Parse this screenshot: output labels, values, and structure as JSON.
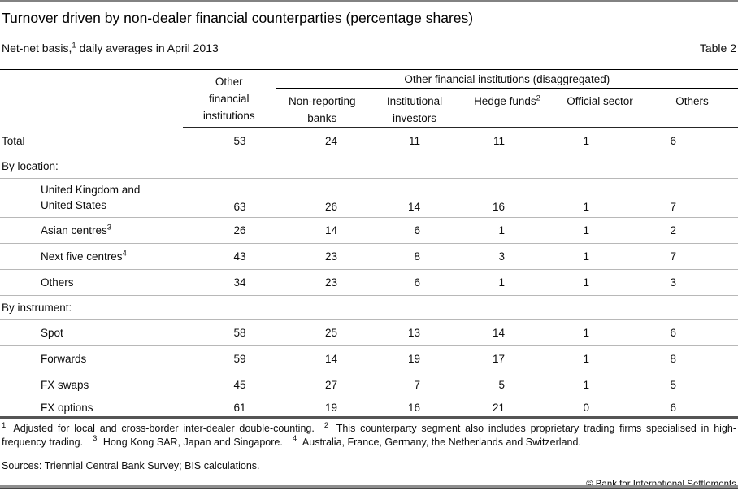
{
  "page": {
    "title": "Turnover driven by non-dealer financial counterparties (percentage shares)",
    "subtitle": {
      "prefix": "Net-net basis,",
      "sup": "1",
      "suffix": " daily averages in April 2013"
    },
    "table_label": "Table 2"
  },
  "table": {
    "spanner": "Other financial institutions (disaggregated)",
    "ofi_header_lines": [
      "Other",
      "financial",
      "institutions"
    ],
    "columns": [
      {
        "lines": [
          "Non-reporting",
          "banks"
        ]
      },
      {
        "lines": [
          "Institutional",
          "investors"
        ]
      },
      {
        "lines": [
          "Hedge funds"
        ],
        "sup": "2"
      },
      {
        "lines": [
          "Official sector"
        ]
      },
      {
        "lines": [
          "Others"
        ]
      }
    ],
    "rows": [
      {
        "type": "data",
        "label_lines": [
          "Total"
        ],
        "indent": false,
        "values": [
          53,
          24,
          11,
          11,
          1,
          6
        ]
      },
      {
        "type": "section",
        "label": "By location:"
      },
      {
        "type": "data",
        "label_lines": [
          "United Kingdom and",
          "United States"
        ],
        "indent": true,
        "values": [
          63,
          26,
          14,
          16,
          1,
          7
        ]
      },
      {
        "type": "data",
        "label_lines": [
          "Asian centres"
        ],
        "sup": "3",
        "indent": true,
        "values": [
          26,
          14,
          6,
          1,
          1,
          2
        ]
      },
      {
        "type": "data",
        "label_lines": [
          "Next five centres"
        ],
        "sup": "4",
        "indent": true,
        "values": [
          43,
          23,
          8,
          3,
          1,
          7
        ]
      },
      {
        "type": "data",
        "label_lines": [
          "Others"
        ],
        "indent": true,
        "values": [
          34,
          23,
          6,
          1,
          1,
          3
        ]
      },
      {
        "type": "section",
        "label": "By instrument:"
      },
      {
        "type": "data",
        "label_lines": [
          "Spot"
        ],
        "indent": true,
        "values": [
          58,
          25,
          13,
          14,
          1,
          6
        ]
      },
      {
        "type": "data",
        "label_lines": [
          "Forwards"
        ],
        "indent": true,
        "values": [
          59,
          14,
          19,
          17,
          1,
          8
        ]
      },
      {
        "type": "data",
        "label_lines": [
          "FX swaps"
        ],
        "indent": true,
        "values": [
          45,
          27,
          7,
          5,
          1,
          5
        ]
      },
      {
        "type": "data",
        "label_lines": [
          "FX options"
        ],
        "indent": true,
        "values": [
          61,
          19,
          16,
          21,
          0,
          6
        ],
        "last": true
      }
    ]
  },
  "footnotes": [
    {
      "sup": "1",
      "text": "Adjusted for local and cross-border inter-dealer double-counting."
    },
    {
      "sup": "2",
      "text": "This counterparty segment also includes proprietary trading firms specialised in high-frequency trading."
    },
    {
      "sup": "3",
      "text": "Hong Kong SAR, Japan and Singapore."
    },
    {
      "sup": "4",
      "text": "Australia, France, Germany, the Netherlands and Switzerland."
    }
  ],
  "sources": "Sources: Triennial Central Bank Survey; BIS calculations.",
  "copyright": "© Bank for International Settlements"
}
